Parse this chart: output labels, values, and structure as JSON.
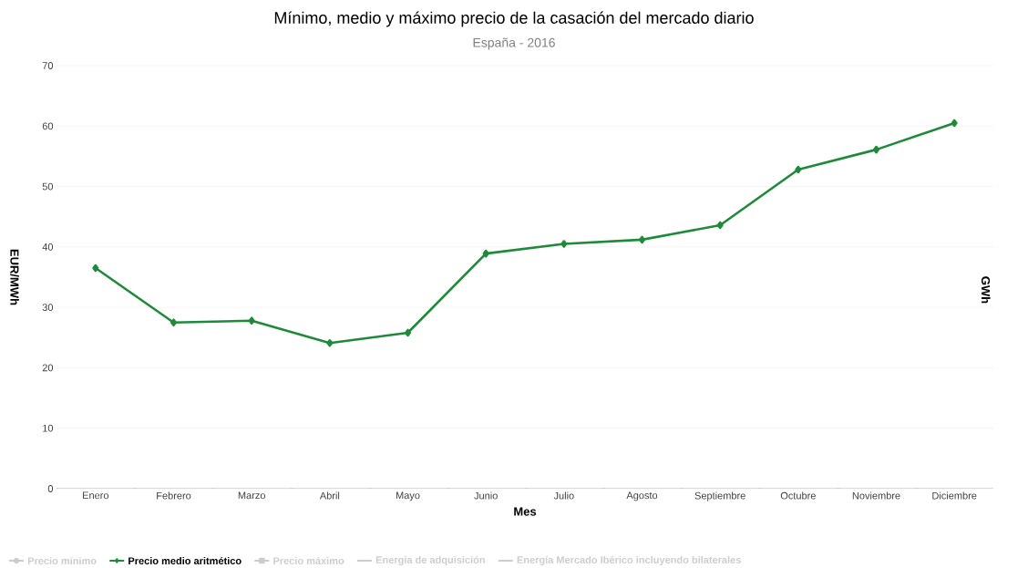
{
  "chart_data": {
    "type": "line",
    "title": "Mínimo, medio y máximo precio de la casación del mercado diario",
    "subtitle": "España - 2016",
    "xlabel": "Mes",
    "ylabel": "EUR/MWh",
    "y2label": "GWh",
    "categories": [
      "Enero",
      "Febrero",
      "Marzo",
      "Abril",
      "Mayo",
      "Junio",
      "Julio",
      "Agosto",
      "Septiembre",
      "Octubre",
      "Noviembre",
      "Diciembre"
    ],
    "series": [
      {
        "name": "Precio mínimo",
        "color": "#cccccc",
        "marker": "circle",
        "values": [
          null,
          null,
          null,
          null,
          null,
          null,
          null,
          null,
          null,
          null,
          null,
          null
        ]
      },
      {
        "name": "Precio medio aritmético",
        "color": "#1f8a3a",
        "marker": "diamond",
        "values": [
          36.5,
          27.5,
          27.8,
          24.1,
          25.8,
          38.9,
          40.5,
          41.2,
          43.6,
          52.8,
          56.1,
          60.5
        ]
      },
      {
        "name": "Precio máximo",
        "color": "#cccccc",
        "marker": "square",
        "values": [
          null,
          null,
          null,
          null,
          null,
          null,
          null,
          null,
          null,
          null,
          null,
          null
        ]
      },
      {
        "name": "Energía de adquisición",
        "color": "#cccccc",
        "marker": "none",
        "values": [
          null,
          null,
          null,
          null,
          null,
          null,
          null,
          null,
          null,
          null,
          null,
          null
        ]
      },
      {
        "name": "Energía Mercado Ibérico incluyendo bilaterales",
        "color": "#cccccc",
        "marker": "none",
        "values": [
          null,
          null,
          null,
          null,
          null,
          null,
          null,
          null,
          null,
          null,
          null,
          null
        ]
      }
    ],
    "ylim": [
      0,
      70
    ],
    "yticks": [
      0,
      10,
      20,
      30,
      40,
      50,
      60,
      70
    ],
    "grid": "y",
    "legend": "bottom",
    "line_style": "solid"
  }
}
